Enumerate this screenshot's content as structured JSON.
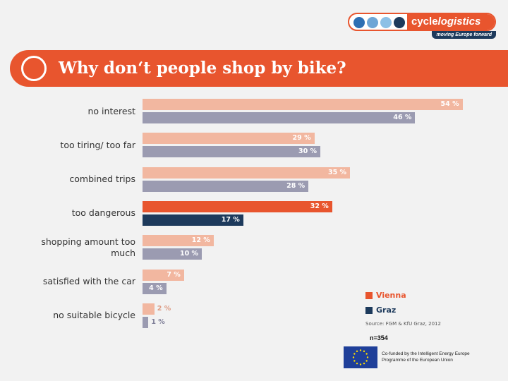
{
  "logo": {
    "brand_prefix": "cycle",
    "brand_suffix": "logistics",
    "tagline": "moving Europe forward",
    "dot_colors": [
      "#2e6fb3",
      "#6fa6d6",
      "#8cc0e6",
      "#1d3a5c"
    ]
  },
  "title": "Why don‘t people shop by bike?",
  "colors": {
    "vienna": "#f2b7a0",
    "graz": "#9b9bb1",
    "vienna_highlight": "#e8552e",
    "graz_highlight": "#1d3a5c",
    "banner": "#e8552e"
  },
  "chart_data": {
    "type": "bar",
    "orientation": "horizontal",
    "categories": [
      "no interest",
      "too tiring/ too far",
      "combined trips",
      "too dangerous",
      "shopping amount too much",
      "satisfied with the car",
      "no suitable bicycle"
    ],
    "series": [
      {
        "name": "Vienna",
        "values": [
          54,
          29,
          35,
          32,
          12,
          7,
          2
        ]
      },
      {
        "name": "Graz",
        "values": [
          46,
          30,
          28,
          17,
          10,
          4,
          1
        ]
      }
    ],
    "value_suffix": " %",
    "highlighted_category": "too dangerous",
    "xlim": [
      0,
      100
    ]
  },
  "category_lines": [
    [
      "no interest"
    ],
    [
      "too tiring/ too far"
    ],
    [
      "combined trips"
    ],
    [
      "too dangerous"
    ],
    [
      "shopping amount too",
      "much"
    ],
    [
      "satisfied with the car"
    ],
    [
      "no suitable bicycle"
    ]
  ],
  "legend": {
    "vienna": "Vienna",
    "graz": "Graz"
  },
  "source": "Source: FGM & KfU Graz, 2012",
  "sample_size": "n=354",
  "footer": {
    "eu_line1": "Co-funded by the Intelligent Energy Europe",
    "eu_line2": "Programme of the European Union"
  }
}
